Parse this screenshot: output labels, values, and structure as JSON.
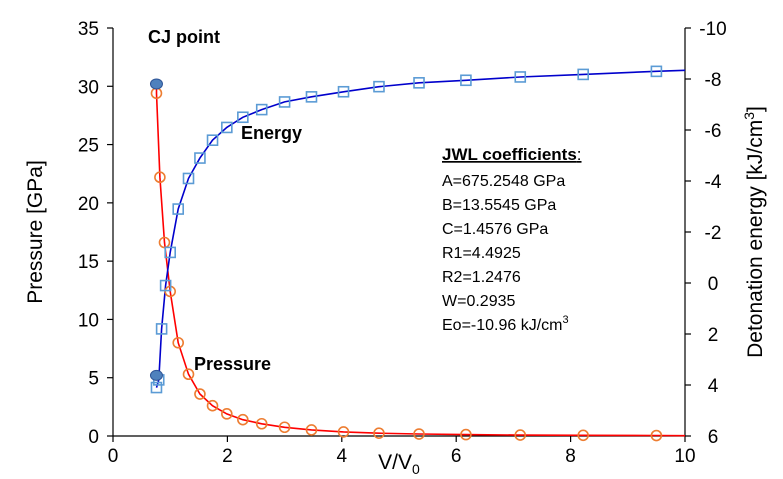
{
  "chart_data": {
    "type": "scatter",
    "xlabel_main": "V/V",
    "xlabel_sub": "0",
    "ylabel_left": "Pressure [GPa]",
    "ylabel_right_main": "Detonation energy [kJ/cm",
    "ylabel_right_sup": "3",
    "ylabel_right_close": "]",
    "xlim": [
      0,
      10
    ],
    "ylim_left": [
      0,
      35
    ],
    "ylim_right": [
      6,
      -10
    ],
    "x_ticks": [
      "0",
      "2",
      "4",
      "6",
      "8",
      "10"
    ],
    "y_left_ticks": [
      "0",
      "5",
      "10",
      "15",
      "20",
      "25",
      "30",
      "35"
    ],
    "y_right_ticks": [
      "6",
      "4",
      "2",
      "0",
      "-2",
      "-4",
      "-6",
      "-8",
      "-10"
    ],
    "colors": {
      "pressure_line": "#ff0000",
      "pressure_marker": "#ed7d31",
      "energy_line": "#0000cc",
      "energy_marker": "#5b9bd5",
      "cj_marker": "#4f81bd"
    },
    "annotations": {
      "cj_point": "CJ point",
      "energy": "Energy",
      "pressure": "Pressure"
    },
    "coefficients": {
      "title": "JWL coefficients",
      "title_suffix": ":",
      "lines": [
        "A=675.2548 GPa",
        "B=13.5545 GPa",
        "C=1.4576 GPa",
        "R1=4.4925",
        "R2=1.2476",
        "W=0.2935"
      ],
      "eo_main": "Eo=-10.96 kJ/cm",
      "eo_sup": "3"
    },
    "series": [
      {
        "name": "Pressure",
        "axis": "left",
        "points": [
          {
            "x": 0.76,
            "y": 29.4
          },
          {
            "x": 0.82,
            "y": 22.2
          },
          {
            "x": 0.9,
            "y": 16.6
          },
          {
            "x": 1.0,
            "y": 12.4
          },
          {
            "x": 1.14,
            "y": 8.0
          },
          {
            "x": 1.32,
            "y": 5.3
          },
          {
            "x": 1.52,
            "y": 3.6
          },
          {
            "x": 1.74,
            "y": 2.6
          },
          {
            "x": 1.99,
            "y": 1.9
          },
          {
            "x": 2.27,
            "y": 1.4
          },
          {
            "x": 2.6,
            "y": 1.05
          },
          {
            "x": 3.0,
            "y": 0.75
          },
          {
            "x": 3.47,
            "y": 0.52
          },
          {
            "x": 4.03,
            "y": 0.35
          },
          {
            "x": 4.65,
            "y": 0.24
          },
          {
            "x": 5.35,
            "y": 0.17
          },
          {
            "x": 6.17,
            "y": 0.12
          },
          {
            "x": 7.12,
            "y": 0.08
          },
          {
            "x": 8.22,
            "y": 0.06
          },
          {
            "x": 9.5,
            "y": 0.04
          }
        ]
      },
      {
        "name": "Energy",
        "axis": "right",
        "points": [
          {
            "x": 0.76,
            "y": 4.1
          },
          {
            "x": 0.8,
            "y": 3.8
          },
          {
            "x": 0.85,
            "y": 1.8
          },
          {
            "x": 0.92,
            "y": 0.1
          },
          {
            "x": 1.0,
            "y": -1.2
          },
          {
            "x": 1.14,
            "y": -2.9
          },
          {
            "x": 1.32,
            "y": -4.1
          },
          {
            "x": 1.52,
            "y": -4.9
          },
          {
            "x": 1.74,
            "y": -5.6
          },
          {
            "x": 1.99,
            "y": -6.1
          },
          {
            "x": 2.27,
            "y": -6.5
          },
          {
            "x": 2.6,
            "y": -6.8
          },
          {
            "x": 3.0,
            "y": -7.1
          },
          {
            "x": 3.47,
            "y": -7.3
          },
          {
            "x": 4.03,
            "y": -7.5
          },
          {
            "x": 4.65,
            "y": -7.7
          },
          {
            "x": 5.35,
            "y": -7.85
          },
          {
            "x": 6.17,
            "y": -7.95
          },
          {
            "x": 7.12,
            "y": -8.08
          },
          {
            "x": 8.22,
            "y": -8.18
          },
          {
            "x": 9.5,
            "y": -8.3
          }
        ]
      }
    ],
    "cj_points": [
      {
        "x": 0.76,
        "y": 30.2,
        "axis": "left"
      },
      {
        "x": 0.76,
        "y": 5.2,
        "axis": "left"
      }
    ]
  }
}
